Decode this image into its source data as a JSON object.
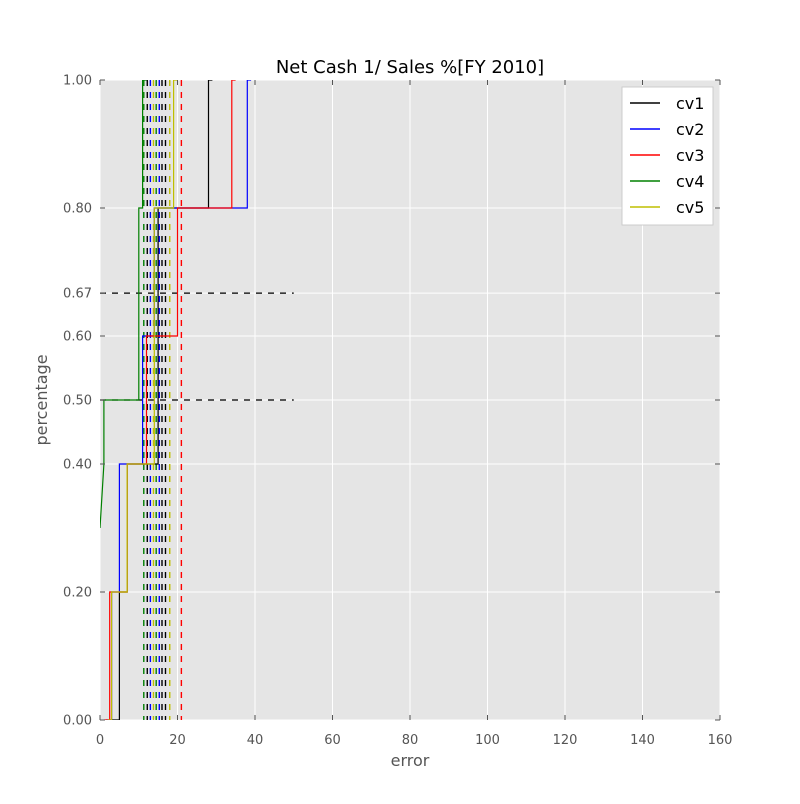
{
  "chart_data": {
    "type": "line",
    "title": "Net Cash 1/ Sales %[FY 2010]",
    "xlabel": "error",
    "ylabel": "percentage",
    "xlim": [
      0,
      160
    ],
    "ylim": [
      0,
      1
    ],
    "xticks": [
      "0",
      "20",
      "40",
      "60",
      "80",
      "100",
      "120",
      "140",
      "160"
    ],
    "yticks": [
      {
        "value": 0.0,
        "label": "0.00"
      },
      {
        "value": 0.2,
        "label": "0.20"
      },
      {
        "value": 0.4,
        "label": "0.40"
      },
      {
        "value": 0.5,
        "label": "0.50"
      },
      {
        "value": 0.6,
        "label": "0.60"
      },
      {
        "value": 0.667,
        "label": "0.67"
      },
      {
        "value": 0.8,
        "label": "0.80"
      },
      {
        "value": 1.0,
        "label": "1.00"
      }
    ],
    "grid": true,
    "background": "#e5e5e5",
    "legend_position": "top-right",
    "series": [
      {
        "name": "cv1",
        "color": "#000000",
        "x": [
          2,
          5,
          5,
          7,
          7,
          15,
          15,
          28,
          28,
          29
        ],
        "y": [
          0,
          0,
          0.2,
          0.2,
          0.4,
          0.4,
          0.8,
          0.8,
          1.0,
          1.0
        ]
      },
      {
        "name": "cv2",
        "color": "#0000ff",
        "x": [
          1.5,
          3,
          3,
          5,
          5,
          11,
          11,
          14,
          14,
          38,
          38,
          39
        ],
        "y": [
          0,
          0,
          0.2,
          0.2,
          0.4,
          0.4,
          0.6,
          0.6,
          0.8,
          0.8,
          1.0,
          1.0
        ]
      },
      {
        "name": "cv3",
        "color": "#ff0000",
        "x": [
          1,
          2.5,
          2.5,
          7,
          7,
          12,
          12,
          20,
          20,
          34,
          34,
          35
        ],
        "y": [
          0,
          0,
          0.2,
          0.2,
          0.4,
          0.4,
          0.6,
          0.6,
          0.8,
          0.8,
          1.0,
          1.0
        ]
      },
      {
        "name": "cv4",
        "color": "#008000",
        "x": [
          0,
          1,
          1,
          10,
          10,
          11,
          11,
          12
        ],
        "y": [
          0.3,
          0.4,
          0.5,
          0.5,
          0.8,
          0.8,
          1.0,
          1.0
        ]
      },
      {
        "name": "cv5",
        "color": "#bfbf00",
        "x": [
          2,
          3,
          3,
          7,
          7,
          14,
          14,
          19,
          19,
          20
        ],
        "y": [
          0,
          0,
          0.2,
          0.2,
          0.4,
          0.4,
          0.8,
          0.8,
          1.0,
          1.0
        ]
      }
    ],
    "vertical_dashed_lines": [
      {
        "x": 11.3,
        "color": "#008000"
      },
      {
        "x": 12.2,
        "color": "#000000"
      },
      {
        "x": 13.0,
        "color": "#0000ff"
      },
      {
        "x": 13.8,
        "color": "#bfbf00"
      },
      {
        "x": 14.5,
        "color": "#008000"
      },
      {
        "x": 15.3,
        "color": "#0000ff"
      },
      {
        "x": 16.0,
        "color": "#000000"
      },
      {
        "x": 16.9,
        "color": "#000000"
      },
      {
        "x": 18.0,
        "color": "#bfbf00"
      },
      {
        "x": 21.0,
        "color": "#ff0000"
      }
    ],
    "horizontal_dashed_lines": [
      {
        "y": 0.667,
        "x_end": 50,
        "color": "#000000"
      },
      {
        "y": 0.5,
        "x_end": 50,
        "color": "#000000"
      }
    ]
  }
}
